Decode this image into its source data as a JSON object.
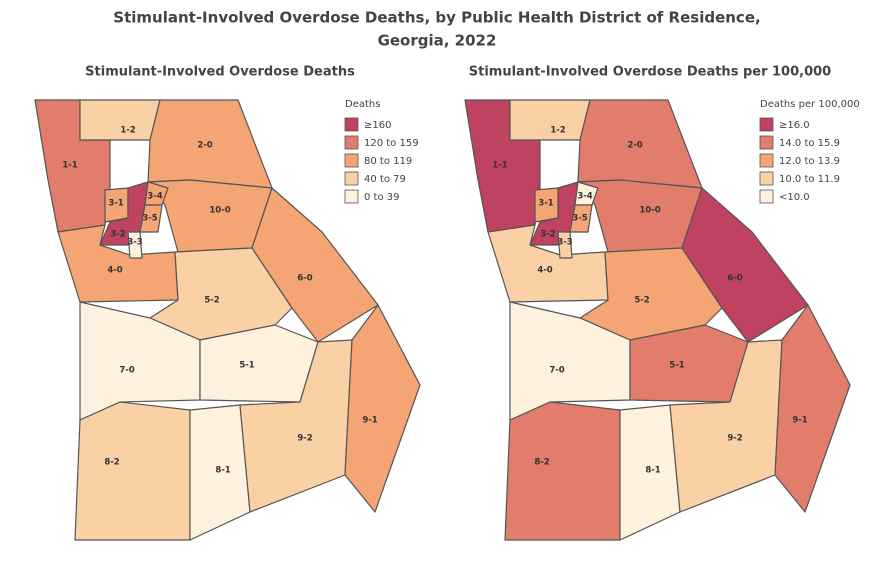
{
  "title_line1": "Stimulant-Involved Overdose Deaths, by Public Health District of Residence,",
  "title_line2": "Georgia, 2022",
  "maps": [
    {
      "title": "Stimulant-Involved Overdose Deaths",
      "legend_title": "Deaths",
      "legend": [
        {
          "label": "≥160",
          "color": "#bf4360"
        },
        {
          "label": "120 to 159",
          "color": "#e27d6c"
        },
        {
          "label": "80 to 119",
          "color": "#f4a573"
        },
        {
          "label": "40 to 79",
          "color": "#f9d1a5"
        },
        {
          "label": "0 to 39",
          "color": "#fef1de"
        }
      ],
      "districts": [
        {
          "label": "1-1",
          "color": "#e27d6c"
        },
        {
          "label": "1-2",
          "color": "#f9d1a5"
        },
        {
          "label": "2-0",
          "color": "#f4a573"
        },
        {
          "label": "10-0",
          "color": "#f4a573"
        },
        {
          "label": "4-0",
          "color": "#f4a573"
        },
        {
          "label": "5-2",
          "color": "#f9d1a5"
        },
        {
          "label": "6-0",
          "color": "#f4a573"
        },
        {
          "label": "7-0",
          "color": "#fef1de"
        },
        {
          "label": "5-1",
          "color": "#fef1de"
        },
        {
          "label": "8-2",
          "color": "#f9d1a5"
        },
        {
          "label": "8-1",
          "color": "#fef1de"
        },
        {
          "label": "9-2",
          "color": "#f9d1a5"
        },
        {
          "label": "9-1",
          "color": "#f4a573"
        },
        {
          "label": "3-1",
          "color": "#f4a573"
        },
        {
          "label": "3-2",
          "color": "#bf4360"
        },
        {
          "label": "3-4",
          "color": "#f4a573"
        },
        {
          "label": "3-5",
          "color": "#f4a573"
        },
        {
          "label": "3-3",
          "color": "#fef1de"
        }
      ]
    },
    {
      "title": "Stimulant-Involved Overdose Deaths per 100,000",
      "legend_title": "Deaths per 100,000",
      "legend": [
        {
          "label": "≥16.0",
          "color": "#bf4360"
        },
        {
          "label": "14.0 to 15.9",
          "color": "#e27d6c"
        },
        {
          "label": "12.0 to 13.9",
          "color": "#f4a573"
        },
        {
          "label": "10.0 to 11.9",
          "color": "#f9d1a5"
        },
        {
          "label": "<10.0",
          "color": "#fef1de"
        }
      ],
      "districts": [
        {
          "label": "1-1",
          "color": "#bf4360"
        },
        {
          "label": "1-2",
          "color": "#f9d1a5"
        },
        {
          "label": "2-0",
          "color": "#e27d6c"
        },
        {
          "label": "10-0",
          "color": "#e27d6c"
        },
        {
          "label": "4-0",
          "color": "#f9d1a5"
        },
        {
          "label": "5-2",
          "color": "#f4a573"
        },
        {
          "label": "6-0",
          "color": "#bf4360"
        },
        {
          "label": "7-0",
          "color": "#fef1de"
        },
        {
          "label": "5-1",
          "color": "#e27d6c"
        },
        {
          "label": "8-2",
          "color": "#e27d6c"
        },
        {
          "label": "8-1",
          "color": "#fef1de"
        },
        {
          "label": "9-2",
          "color": "#f9d1a5"
        },
        {
          "label": "9-1",
          "color": "#e27d6c"
        },
        {
          "label": "3-1",
          "color": "#f4a573"
        },
        {
          "label": "3-2",
          "color": "#bf4360"
        },
        {
          "label": "3-4",
          "color": "#fef1de"
        },
        {
          "label": "3-5",
          "color": "#f4a573"
        },
        {
          "label": "3-3",
          "color": "#f9d1a5"
        }
      ]
    }
  ]
}
